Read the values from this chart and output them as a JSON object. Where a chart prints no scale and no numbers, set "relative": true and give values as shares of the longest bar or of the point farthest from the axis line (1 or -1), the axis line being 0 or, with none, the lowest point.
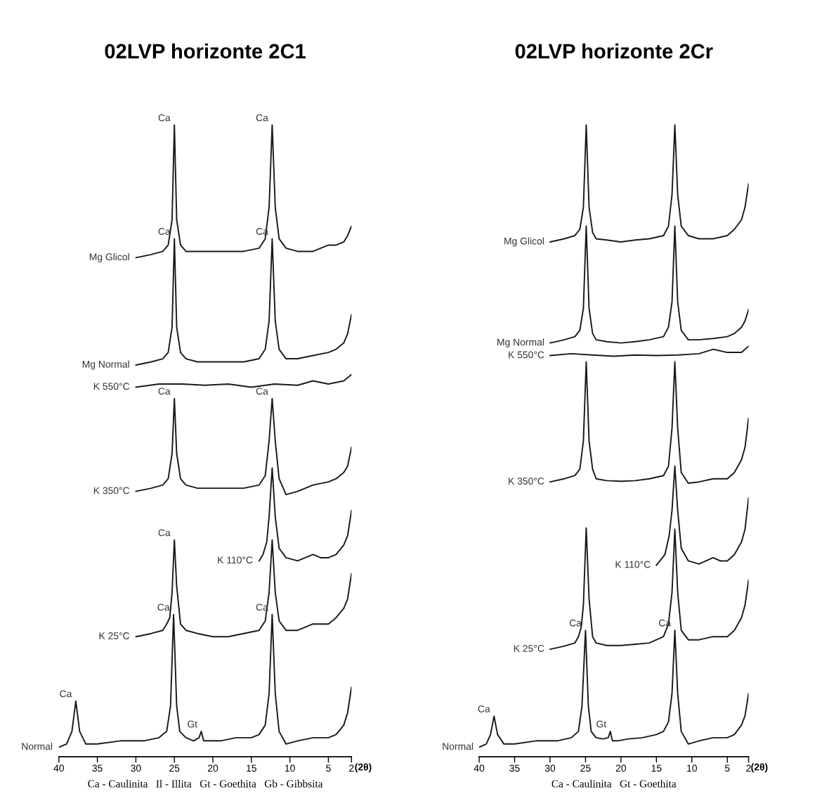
{
  "chart_data": [
    {
      "type": "line",
      "title": "02LVP horizonte 2C1",
      "relative": true,
      "xlabel": "(2θ)",
      "xlim": [
        40,
        2
      ],
      "xticks": [
        40,
        35,
        30,
        25,
        20,
        15,
        10,
        5,
        2
      ],
      "grid": false,
      "legend": false,
      "marker": "none",
      "line_style": "solid",
      "series": [
        {
          "name": "Mg Glicol",
          "color": "#1a1a1a",
          "x": [
            30,
            28,
            26.5,
            25.8,
            25.3,
            25,
            24.7,
            24.2,
            23.5,
            22,
            20,
            18,
            16,
            14,
            13.2,
            12.7,
            12.3,
            11.9,
            11.4,
            10.5,
            9,
            7,
            5,
            4,
            3,
            2.5,
            2
          ],
          "values": [
            0.79,
            0.795,
            0.8,
            0.81,
            0.85,
            1.0,
            0.85,
            0.81,
            0.8,
            0.8,
            0.8,
            0.8,
            0.8,
            0.805,
            0.82,
            0.87,
            1.0,
            0.87,
            0.82,
            0.805,
            0.8,
            0.8,
            0.81,
            0.81,
            0.815,
            0.825,
            0.84
          ]
        },
        {
          "name": "Mg Normal",
          "color": "#1a1a1a",
          "x": [
            30,
            28,
            26.5,
            25.8,
            25.3,
            25,
            24.7,
            24.2,
            23.5,
            22,
            20,
            18,
            16,
            14,
            13.2,
            12.7,
            12.3,
            11.9,
            11.4,
            10.5,
            9,
            7,
            5,
            4,
            3,
            2.5,
            2
          ],
          "values": [
            0.62,
            0.625,
            0.63,
            0.64,
            0.68,
            0.82,
            0.68,
            0.64,
            0.63,
            0.625,
            0.625,
            0.625,
            0.625,
            0.63,
            0.645,
            0.69,
            0.82,
            0.69,
            0.645,
            0.63,
            0.63,
            0.635,
            0.64,
            0.645,
            0.655,
            0.67,
            0.7
          ]
        },
        {
          "name": "K 550°C",
          "color": "#1a1a1a",
          "x": [
            30,
            27,
            24,
            21,
            18,
            15,
            12,
            9,
            7,
            5,
            3,
            2
          ],
          "values": [
            0.585,
            0.59,
            0.59,
            0.588,
            0.59,
            0.585,
            0.59,
            0.588,
            0.595,
            0.59,
            0.595,
            0.605
          ]
        },
        {
          "name": "K 350°C",
          "color": "#1a1a1a",
          "x": [
            30,
            28,
            26.5,
            25.8,
            25.3,
            25,
            24.7,
            24.2,
            23.5,
            22,
            20,
            18,
            16,
            14,
            13.2,
            12.7,
            12.3,
            11.9,
            11.4,
            10.5,
            9,
            7,
            5,
            4,
            3,
            2.5,
            2
          ],
          "values": [
            0.42,
            0.425,
            0.43,
            0.44,
            0.48,
            0.567,
            0.48,
            0.44,
            0.43,
            0.425,
            0.425,
            0.425,
            0.425,
            0.43,
            0.445,
            0.5,
            0.567,
            0.5,
            0.44,
            0.415,
            0.42,
            0.43,
            0.435,
            0.44,
            0.45,
            0.46,
            0.49
          ]
        },
        {
          "name": "K 110°C",
          "color": "#1a1a1a",
          "x": [
            14,
            13.5,
            13,
            12.7,
            12.3,
            11.9,
            11.4,
            10.5,
            9,
            8,
            7,
            6,
            5,
            4,
            3,
            2.5,
            2
          ],
          "values": [
            0.31,
            0.32,
            0.34,
            0.38,
            0.457,
            0.38,
            0.33,
            0.315,
            0.31,
            0.315,
            0.32,
            0.315,
            0.315,
            0.32,
            0.335,
            0.35,
            0.39
          ]
        },
        {
          "name": "K 25°C",
          "color": "#1a1a1a",
          "x": [
            30,
            28,
            26.5,
            26,
            25.6,
            25.3,
            25,
            24.7,
            24.2,
            23.5,
            22,
            20,
            18,
            16,
            14,
            13.2,
            12.7,
            12.3,
            11.9,
            11.4,
            10.5,
            9,
            7,
            5,
            4,
            3,
            2.5,
            2
          ],
          "values": [
            0.19,
            0.195,
            0.2,
            0.21,
            0.22,
            0.26,
            0.343,
            0.27,
            0.21,
            0.2,
            0.195,
            0.19,
            0.19,
            0.195,
            0.2,
            0.215,
            0.26,
            0.343,
            0.26,
            0.215,
            0.2,
            0.2,
            0.21,
            0.21,
            0.22,
            0.235,
            0.25,
            0.29
          ]
        },
        {
          "name": "Normal",
          "color": "#1a1a1a",
          "x": [
            40,
            39,
            38.3,
            37.8,
            37.3,
            36.5,
            35,
            32,
            29,
            27,
            26,
            25.5,
            25.1,
            24.7,
            24.3,
            23.5,
            22.5,
            21.8,
            21.5,
            21.2,
            20.5,
            19,
            17,
            15,
            14,
            13.2,
            12.7,
            12.3,
            11.9,
            11.4,
            10.5,
            9,
            7,
            5,
            4,
            3,
            2.5,
            2
          ],
          "values": [
            0.015,
            0.02,
            0.04,
            0.088,
            0.04,
            0.02,
            0.02,
            0.025,
            0.025,
            0.03,
            0.04,
            0.08,
            0.225,
            0.08,
            0.04,
            0.03,
            0.025,
            0.03,
            0.04,
            0.025,
            0.025,
            0.025,
            0.03,
            0.03,
            0.035,
            0.05,
            0.1,
            0.225,
            0.1,
            0.04,
            0.02,
            0.025,
            0.03,
            0.03,
            0.035,
            0.05,
            0.07,
            0.11
          ]
        }
      ],
      "annotations": [
        {
          "text": "Ca",
          "x": 25,
          "y": 1.0
        },
        {
          "text": "Ca",
          "x": 12.3,
          "y": 1.0
        },
        {
          "text": "Ca",
          "x": 25,
          "y": 0.82
        },
        {
          "text": "Ca",
          "x": 12.3,
          "y": 0.82
        },
        {
          "text": "Ca",
          "x": 25,
          "y": 0.567
        },
        {
          "text": "Ca",
          "x": 12.3,
          "y": 0.567
        },
        {
          "text": "Ca",
          "x": 25,
          "y": 0.343
        },
        {
          "text": "Ca",
          "x": 37.8,
          "y": 0.088
        },
        {
          "text": "Gt",
          "x": 21.5,
          "y": 0.04
        },
        {
          "text": "Ca",
          "x": 25.1,
          "y": 0.225
        },
        {
          "text": "Ca",
          "x": 12.3,
          "y": 0.225
        },
        "Ca - Caulinita   Il - Illita   Gt - Goethita   Gb - Gibbsita"
      ]
    },
    {
      "type": "line",
      "title": "02LVP horizonte 2Cr",
      "relative": true,
      "xlabel": "(2θ)",
      "xlim": [
        40,
        2
      ],
      "xticks": [
        40,
        35,
        30,
        25,
        20,
        15,
        10,
        5,
        2
      ],
      "grid": false,
      "legend": false,
      "marker": "none",
      "line_style": "solid",
      "series": [
        {
          "name": "Mg Glicol",
          "color": "#1a1a1a",
          "x": [
            30,
            28,
            26.5,
            25.8,
            25.3,
            24.9,
            24.5,
            24,
            23.5,
            22,
            20,
            18,
            16,
            14,
            13.3,
            12.8,
            12.4,
            12,
            11.5,
            10.5,
            9,
            7,
            5,
            4,
            3,
            2.5,
            2
          ],
          "values": [
            0.815,
            0.82,
            0.825,
            0.835,
            0.87,
            1.0,
            0.87,
            0.83,
            0.82,
            0.818,
            0.815,
            0.818,
            0.82,
            0.825,
            0.84,
            0.89,
            1.0,
            0.89,
            0.84,
            0.825,
            0.82,
            0.82,
            0.825,
            0.835,
            0.85,
            0.87,
            0.907
          ]
        },
        {
          "name": "Mg Normal",
          "color": "#1a1a1a",
          "x": [
            30,
            28,
            26.5,
            25.8,
            25.3,
            24.9,
            24.5,
            24,
            23.5,
            22,
            20,
            18,
            16,
            14,
            13.3,
            12.8,
            12.4,
            12,
            11.5,
            10.5,
            9,
            7,
            5,
            4,
            3,
            2.5,
            2
          ],
          "values": [
            0.655,
            0.66,
            0.665,
            0.675,
            0.71,
            0.84,
            0.71,
            0.67,
            0.66,
            0.657,
            0.655,
            0.657,
            0.66,
            0.665,
            0.68,
            0.72,
            0.84,
            0.72,
            0.675,
            0.66,
            0.66,
            0.662,
            0.665,
            0.67,
            0.68,
            0.69,
            0.708
          ]
        },
        {
          "name": "K 550°C",
          "color": "#1a1a1a",
          "x": [
            30,
            27,
            24,
            21,
            18,
            15,
            12,
            9,
            7,
            5,
            3,
            2
          ],
          "values": [
            0.635,
            0.638,
            0.636,
            0.634,
            0.636,
            0.635,
            0.636,
            0.638,
            0.645,
            0.64,
            0.64,
            0.65
          ]
        },
        {
          "name": "K 350°C",
          "color": "#1a1a1a",
          "x": [
            30,
            28,
            26.5,
            25.8,
            25.3,
            24.9,
            24.5,
            24,
            23.5,
            22,
            20,
            18,
            16,
            14,
            13.3,
            12.8,
            12.4,
            12,
            11.5,
            10.5,
            9,
            7,
            5,
            4,
            3,
            2.5,
            2
          ],
          "values": [
            0.435,
            0.44,
            0.445,
            0.455,
            0.5,
            0.625,
            0.5,
            0.455,
            0.44,
            0.437,
            0.436,
            0.437,
            0.44,
            0.445,
            0.46,
            0.52,
            0.625,
            0.52,
            0.45,
            0.433,
            0.435,
            0.44,
            0.44,
            0.45,
            0.47,
            0.49,
            0.536
          ]
        },
        {
          "name": "K 110°C",
          "color": "#1a1a1a",
          "x": [
            15,
            14.5,
            13.8,
            13.2,
            12.8,
            12.4,
            12,
            11.5,
            10.5,
            9,
            8,
            7,
            6,
            5,
            4,
            3,
            2.5,
            2
          ],
          "values": [
            0.303,
            0.31,
            0.32,
            0.35,
            0.39,
            0.46,
            0.39,
            0.33,
            0.31,
            0.305,
            0.31,
            0.315,
            0.31,
            0.31,
            0.32,
            0.34,
            0.36,
            0.41
          ]
        },
        {
          "name": "K 25°C",
          "color": "#1a1a1a",
          "x": [
            30,
            28,
            26.5,
            26,
            25.6,
            25.3,
            24.9,
            24.5,
            24,
            23.5,
            22,
            20,
            18,
            16,
            14,
            13.3,
            12.8,
            12.4,
            12,
            11.5,
            10.5,
            9,
            7,
            5,
            4,
            3,
            2.5,
            2
          ],
          "values": [
            0.17,
            0.175,
            0.18,
            0.19,
            0.205,
            0.24,
            0.362,
            0.25,
            0.19,
            0.18,
            0.176,
            0.176,
            0.178,
            0.18,
            0.19,
            0.21,
            0.26,
            0.36,
            0.26,
            0.2,
            0.185,
            0.185,
            0.19,
            0.19,
            0.2,
            0.22,
            0.24,
            0.28
          ]
        },
        {
          "name": "Normal",
          "color": "#1a1a1a",
          "x": [
            40,
            39,
            38.4,
            37.9,
            37.4,
            36.5,
            35,
            32,
            29,
            27,
            26,
            25.5,
            25,
            24.6,
            24.2,
            23.5,
            22.5,
            21.8,
            21.5,
            21.2,
            20.5,
            19,
            17,
            15,
            14,
            13.3,
            12.8,
            12.4,
            12,
            11.5,
            10.5,
            9,
            7,
            5,
            4,
            3,
            2.5,
            2
          ],
          "values": [
            0.015,
            0.02,
            0.035,
            0.064,
            0.035,
            0.02,
            0.02,
            0.025,
            0.025,
            0.03,
            0.04,
            0.08,
            0.2,
            0.08,
            0.04,
            0.03,
            0.028,
            0.03,
            0.04,
            0.025,
            0.025,
            0.028,
            0.03,
            0.035,
            0.04,
            0.055,
            0.1,
            0.2,
            0.1,
            0.04,
            0.02,
            0.025,
            0.03,
            0.03,
            0.035,
            0.05,
            0.065,
            0.1
          ]
        }
      ],
      "annotations": [
        {
          "text": "Ca",
          "x": 37.9,
          "y": 0.064
        },
        {
          "text": "Gt",
          "x": 21.5,
          "y": 0.04
        },
        {
          "text": "Ca",
          "x": 25,
          "y": 0.2
        },
        {
          "text": "Ca",
          "x": 12.4,
          "y": 0.2
        },
        "Ca - Caulinita   Gt - Goethita"
      ]
    }
  ]
}
